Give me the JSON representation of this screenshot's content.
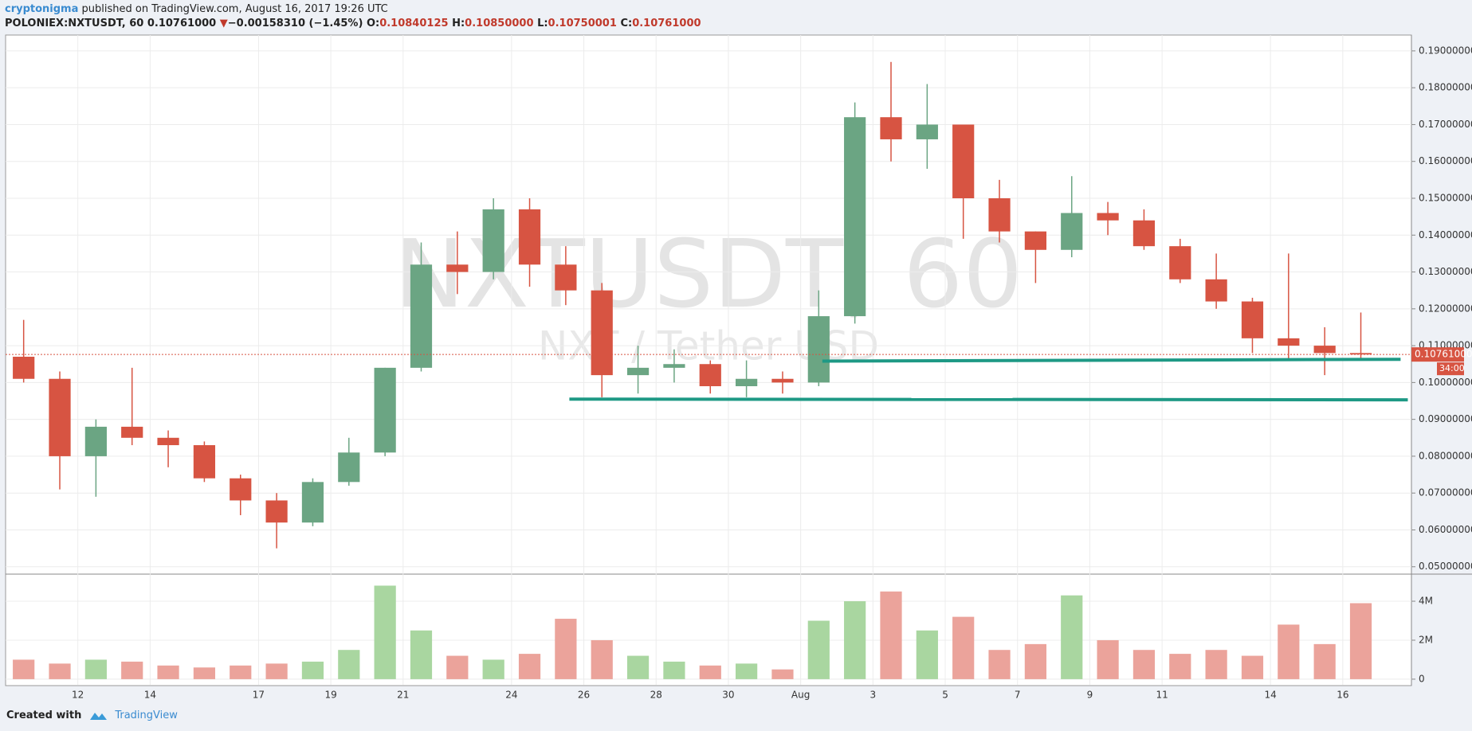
{
  "header": {
    "author": "cryptonigma",
    "published": "published on TradingView.com, August 16, 2017 19:26 UTC",
    "symbol": "POLONIEX:NXTUSDT, 60",
    "last": "0.10761000",
    "arrow": "▼",
    "change": "−0.00158310 (−1.45%)",
    "o_label": "O:",
    "o": "0.10840125",
    "h_label": "H:",
    "h": "0.10850000",
    "l_label": "L:",
    "l": "0.10750001",
    "c_label": "C:",
    "c": "0.10761000"
  },
  "footer": {
    "created": "Created with",
    "brand": "TradingView"
  },
  "chart_data": {
    "type": "candlestick",
    "watermark": "NXTUSDT, 60",
    "subtitle": "NXT / Tether USD",
    "categories": [
      null,
      null,
      "12",
      null,
      "14",
      null,
      null,
      "17",
      null,
      "19",
      null,
      "21",
      null,
      null,
      "24",
      null,
      "26",
      null,
      "28",
      null,
      "30",
      null,
      "Aug",
      null,
      "3",
      null,
      "5",
      null,
      "7",
      null,
      "9",
      null,
      "11",
      null,
      null,
      "14",
      null,
      "16"
    ],
    "open": [
      0.107,
      0.101,
      0.08,
      0.088,
      0.085,
      0.083,
      0.074,
      0.068,
      0.062,
      0.073,
      0.081,
      0.104,
      0.132,
      0.13,
      0.147,
      0.132,
      0.125,
      0.102,
      0.104,
      0.105,
      0.099,
      0.101,
      0.1,
      0.118,
      0.172,
      0.166,
      0.17,
      0.15,
      0.141,
      0.136,
      0.146,
      0.144,
      0.137,
      0.128,
      0.122,
      0.112,
      0.11,
      0.108
    ],
    "high": [
      0.117,
      0.103,
      0.09,
      0.104,
      0.087,
      0.084,
      0.075,
      0.07,
      0.074,
      0.085,
      0.104,
      0.138,
      0.141,
      0.15,
      0.15,
      0.137,
      0.127,
      0.11,
      0.109,
      0.106,
      0.106,
      0.103,
      0.125,
      0.176,
      0.187,
      0.181,
      0.17,
      0.155,
      0.141,
      0.156,
      0.149,
      0.147,
      0.139,
      0.135,
      0.123,
      0.135,
      0.115,
      0.119
    ],
    "low": [
      0.1,
      0.071,
      0.069,
      0.083,
      0.077,
      0.073,
      0.064,
      0.055,
      0.061,
      0.072,
      0.08,
      0.103,
      0.124,
      0.128,
      0.126,
      0.121,
      0.096,
      0.097,
      0.1,
      0.097,
      0.096,
      0.097,
      0.099,
      0.116,
      0.16,
      0.158,
      0.139,
      0.138,
      0.127,
      0.134,
      0.14,
      0.136,
      0.127,
      0.12,
      0.108,
      0.106,
      0.102,
      0.106
    ],
    "close": [
      0.101,
      0.08,
      0.088,
      0.085,
      0.083,
      0.074,
      0.068,
      0.062,
      0.073,
      0.081,
      0.104,
      0.132,
      0.13,
      0.147,
      0.132,
      0.125,
      0.102,
      0.104,
      0.105,
      0.099,
      0.101,
      0.1,
      0.118,
      0.172,
      0.166,
      0.17,
      0.15,
      0.141,
      0.136,
      0.146,
      0.144,
      0.137,
      0.128,
      0.122,
      0.112,
      0.11,
      0.108,
      0.10761
    ],
    "volume": [
      1000000,
      800000,
      1000000,
      900000,
      700000,
      600000,
      700000,
      800000,
      900000,
      1500000,
      4800000,
      2500000,
      1200000,
      1000000,
      1300000,
      3100000,
      2000000,
      1200000,
      900000,
      700000,
      800000,
      500000,
      3000000,
      4000000,
      4500000,
      2500000,
      3200000,
      1500000,
      1800000,
      4300000,
      2000000,
      1500000,
      1300000,
      1500000,
      1200000,
      2800000,
      1800000,
      3900000
    ],
    "up_color": "#6ba583",
    "down_color": "#d75442",
    "up_volume_color": "#a9d6a0",
    "down_volume_color": "#eba39b",
    "xlim": [
      0,
      38.9
    ],
    "ylim": [
      0.048,
      0.1943
    ],
    "yticks": [
      {
        "value": 0.05,
        "label": "0.05000000"
      },
      {
        "value": 0.06,
        "label": "0.06000000"
      },
      {
        "value": 0.07,
        "label": "0.07000000"
      },
      {
        "value": 0.08,
        "label": "0.08000000"
      },
      {
        "value": 0.09,
        "label": "0.09000000"
      },
      {
        "value": 0.1,
        "label": "0.10000000"
      },
      {
        "value": 0.11,
        "label": "0.11000000"
      },
      {
        "value": 0.12,
        "label": "0.12000000"
      },
      {
        "value": 0.13,
        "label": "0.13000000"
      },
      {
        "value": 0.14,
        "label": "0.14000000"
      },
      {
        "value": 0.15,
        "label": "0.15000000"
      },
      {
        "value": 0.16,
        "label": "0.16000000"
      },
      {
        "value": 0.17,
        "label": "0.17000000"
      },
      {
        "value": 0.18,
        "label": "0.18000000"
      },
      {
        "value": 0.19,
        "label": "0.19000000"
      }
    ],
    "vlim": [
      -290000,
      5350000
    ],
    "vticks": [
      {
        "value": 0,
        "label": "0"
      },
      {
        "value": 2000000,
        "label": "2M"
      },
      {
        "value": 4000000,
        "label": "4M"
      }
    ],
    "last_price": {
      "value": 0.10761,
      "label": "0.10761000",
      "countdown": "34:00",
      "color": "#d75442"
    },
    "trendlines": [
      {
        "x": [
          15.6,
          38.8
        ],
        "y": [
          0.0955,
          0.0953
        ],
        "color": "#1e9985"
      },
      {
        "x": [
          22.6,
          38.6
        ],
        "y": [
          0.1058,
          0.1063
        ],
        "color": "#1e9985"
      }
    ],
    "grid": true
  }
}
